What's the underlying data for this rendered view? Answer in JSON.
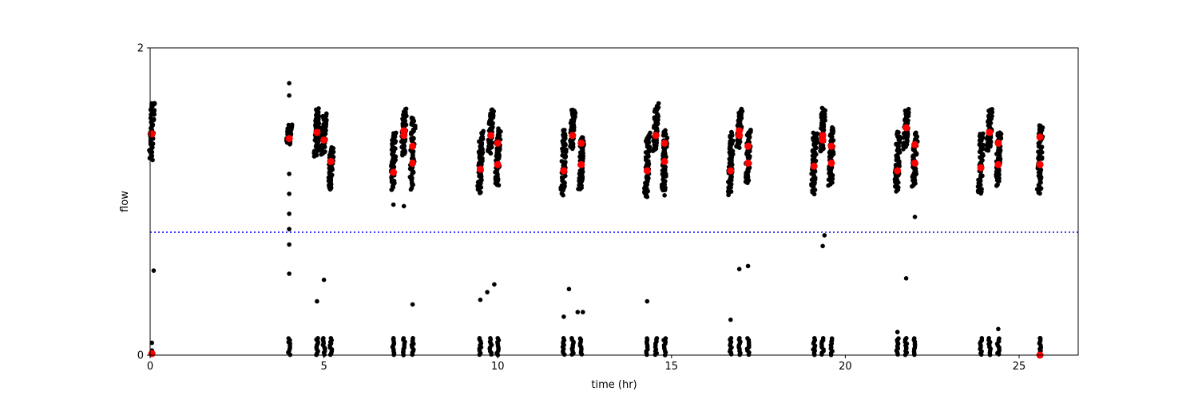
{
  "chart_data": {
    "type": "scatter",
    "title": "",
    "xlabel": "time (hr)",
    "ylabel": "flow",
    "xlim": [
      0,
      26.7
    ],
    "ylim": [
      0,
      2
    ],
    "x_ticks": [
      0,
      5,
      10,
      15,
      20,
      25
    ],
    "y_ticks": [
      0,
      2
    ],
    "grid": false,
    "threshold_line": {
      "y": 0.8,
      "style": "dotted",
      "color": "#0000ff"
    },
    "colors": {
      "raw": "#000000",
      "highlight": "#ff0000",
      "threshold": "#0000ff"
    },
    "clusters": [
      {
        "x": 0.05,
        "lo": 1.28,
        "hi": 1.65
      },
      {
        "x": 4.0,
        "lo": 1.38,
        "hi": 1.5
      },
      {
        "x": 4.8,
        "lo": 1.3,
        "hi": 1.6
      },
      {
        "x": 5.0,
        "lo": 1.3,
        "hi": 1.57
      },
      {
        "x": 5.2,
        "lo": 1.08,
        "hi": 1.35
      },
      {
        "x": 7.0,
        "lo": 1.08,
        "hi": 1.45
      },
      {
        "x": 7.3,
        "lo": 1.3,
        "hi": 1.6
      },
      {
        "x": 7.55,
        "lo": 1.08,
        "hi": 1.55
      },
      {
        "x": 9.5,
        "lo": 1.05,
        "hi": 1.46
      },
      {
        "x": 9.8,
        "lo": 1.32,
        "hi": 1.6
      },
      {
        "x": 10.0,
        "lo": 1.1,
        "hi": 1.47
      },
      {
        "x": 11.9,
        "lo": 1.05,
        "hi": 1.47
      },
      {
        "x": 12.15,
        "lo": 1.35,
        "hi": 1.6
      },
      {
        "x": 12.4,
        "lo": 1.08,
        "hi": 1.42
      },
      {
        "x": 14.3,
        "lo": 1.03,
        "hi": 1.44
      },
      {
        "x": 14.55,
        "lo": 1.33,
        "hi": 1.63
      },
      {
        "x": 14.8,
        "lo": 1.07,
        "hi": 1.46
      },
      {
        "x": 16.7,
        "lo": 1.05,
        "hi": 1.45
      },
      {
        "x": 16.95,
        "lo": 1.35,
        "hi": 1.6
      },
      {
        "x": 17.2,
        "lo": 1.12,
        "hi": 1.47
      },
      {
        "x": 19.1,
        "lo": 1.05,
        "hi": 1.45
      },
      {
        "x": 19.35,
        "lo": 1.33,
        "hi": 1.6
      },
      {
        "x": 19.6,
        "lo": 1.1,
        "hi": 1.48
      },
      {
        "x": 21.5,
        "lo": 1.07,
        "hi": 1.45
      },
      {
        "x": 21.75,
        "lo": 1.35,
        "hi": 1.6
      },
      {
        "x": 22.0,
        "lo": 1.1,
        "hi": 1.45
      },
      {
        "x": 23.9,
        "lo": 1.05,
        "hi": 1.45
      },
      {
        "x": 24.15,
        "lo": 1.33,
        "hi": 1.6
      },
      {
        "x": 24.4,
        "lo": 1.1,
        "hi": 1.45
      },
      {
        "x": 25.6,
        "lo": 1.05,
        "hi": 1.5
      }
    ],
    "low_clusters_x": [
      4.0,
      4.8,
      5.0,
      5.2,
      7.0,
      7.3,
      7.55,
      9.5,
      9.8,
      10.0,
      11.9,
      12.15,
      12.4,
      14.3,
      14.55,
      14.8,
      16.7,
      16.95,
      17.2,
      19.1,
      19.35,
      19.6,
      21.5,
      21.75,
      22.0,
      23.9,
      24.15,
      24.4,
      25.6
    ],
    "outliers": [
      [
        4.0,
        1.77
      ],
      [
        4.0,
        1.69
      ],
      [
        4.0,
        1.18
      ],
      [
        4.0,
        1.05
      ],
      [
        4.0,
        0.92
      ],
      [
        4.0,
        0.82
      ],
      [
        4.0,
        0.72
      ],
      [
        4.0,
        0.53
      ],
      [
        0.1,
        0.55
      ],
      [
        0.05,
        0.08
      ],
      [
        0.05,
        0.03
      ],
      [
        4.8,
        0.35
      ],
      [
        5.0,
        0.49
      ],
      [
        7.0,
        0.98
      ],
      [
        7.3,
        0.97
      ],
      [
        7.55,
        0.33
      ],
      [
        9.5,
        0.36
      ],
      [
        9.7,
        0.41
      ],
      [
        9.9,
        0.46
      ],
      [
        11.9,
        0.25
      ],
      [
        12.05,
        0.43
      ],
      [
        12.3,
        0.28
      ],
      [
        12.45,
        0.28
      ],
      [
        14.3,
        0.35
      ],
      [
        14.3,
        1.03
      ],
      [
        14.8,
        1.04
      ],
      [
        16.7,
        0.23
      ],
      [
        16.95,
        0.56
      ],
      [
        17.2,
        0.58
      ],
      [
        19.35,
        0.71
      ],
      [
        19.4,
        0.78
      ],
      [
        21.5,
        0.15
      ],
      [
        21.75,
        0.5
      ],
      [
        22.0,
        0.9
      ],
      [
        24.4,
        0.17
      ],
      [
        25.6,
        0.11
      ],
      [
        25.6,
        0.0
      ]
    ],
    "highlights": [
      [
        0.05,
        1.44
      ],
      [
        4.0,
        1.41
      ],
      [
        4.8,
        1.45
      ],
      [
        5.0,
        1.4
      ],
      [
        5.2,
        1.26
      ],
      [
        7.0,
        1.19
      ],
      [
        7.3,
        1.46
      ],
      [
        7.3,
        1.43
      ],
      [
        7.55,
        1.36
      ],
      [
        7.55,
        1.25
      ],
      [
        9.5,
        1.21
      ],
      [
        9.8,
        1.43
      ],
      [
        10.0,
        1.38
      ],
      [
        10.0,
        1.24
      ],
      [
        11.9,
        1.2
      ],
      [
        12.15,
        1.43
      ],
      [
        12.4,
        1.38
      ],
      [
        12.4,
        1.24
      ],
      [
        14.3,
        1.2
      ],
      [
        14.55,
        1.43
      ],
      [
        14.8,
        1.38
      ],
      [
        14.8,
        1.26
      ],
      [
        16.7,
        1.2
      ],
      [
        16.95,
        1.46
      ],
      [
        16.95,
        1.43
      ],
      [
        17.2,
        1.36
      ],
      [
        17.2,
        1.25
      ],
      [
        19.1,
        1.23
      ],
      [
        19.35,
        1.43
      ],
      [
        19.35,
        1.4
      ],
      [
        19.6,
        1.36
      ],
      [
        19.6,
        1.25
      ],
      [
        21.5,
        1.2
      ],
      [
        21.75,
        1.48
      ],
      [
        22.0,
        1.37
      ],
      [
        22.0,
        1.25
      ],
      [
        23.9,
        1.22
      ],
      [
        24.15,
        1.45
      ],
      [
        24.4,
        1.38
      ],
      [
        24.4,
        1.24
      ],
      [
        25.6,
        1.24
      ],
      [
        25.6,
        1.42
      ],
      [
        0.05,
        0.01
      ],
      [
        25.6,
        0.0
      ]
    ]
  }
}
